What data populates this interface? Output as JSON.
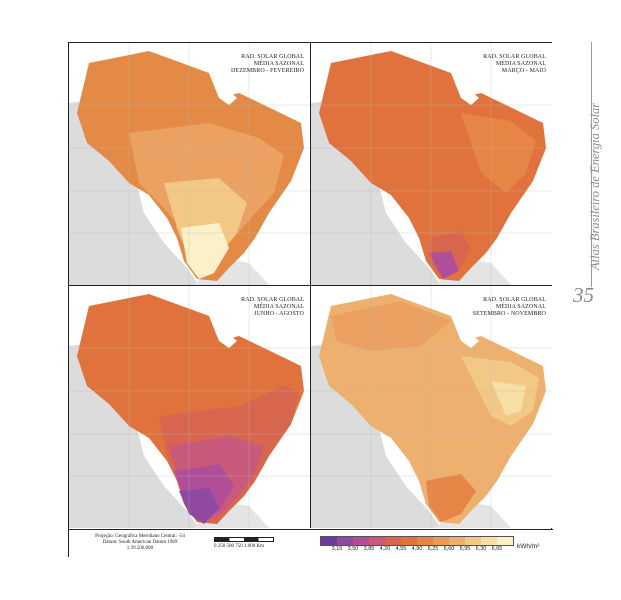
{
  "panels": [
    {
      "id": "summer",
      "line1": "RAD. SOLAR GLOBAL",
      "line2": "MÉDIA SAZONAL",
      "line3": "DEZEMBRO - FEVEREIRO"
    },
    {
      "id": "autumn",
      "line1": "RAD. SOLAR GLOBAL",
      "line2": "MÉDIA SAZONAL",
      "line3": "MARÇO - MAIO"
    },
    {
      "id": "winter",
      "line1": "RAD. SOLAR GLOBAL",
      "line2": "MÉDIA SAZONAL",
      "line3": "JUNHO - AGOSTO"
    },
    {
      "id": "spring",
      "line1": "RAD. SOLAR GLOBAL",
      "line2": "MÉDIA SAZONAL",
      "line3": "SETEMBRO - NOVEMBRO"
    }
  ],
  "footer": {
    "projection_line1": "Projeção: Geográfica    Meridiano Central: -54",
    "projection_line2": "Datum: South American Datum 1969",
    "projection_line3": "1:39.500.000",
    "scale_labels": "0    250   500   750   1.000  Km"
  },
  "legend": {
    "values": [
      "3,15",
      "3,50",
      "3,85",
      "4,20",
      "4,55",
      "4,90",
      "5,25",
      "5,60",
      "5,95",
      "6,30",
      "6,65"
    ],
    "unit": "kWh/m²",
    "colors": [
      "#6a3d9a",
      "#8e4aa0",
      "#b04e99",
      "#c95a7c",
      "#d8664f",
      "#e0733d",
      "#e68545",
      "#eb9a58",
      "#eeb06e",
      "#f2c887",
      "#f6dea4",
      "#fbf0c8"
    ]
  },
  "sidebar": {
    "book_title": "Atlas Brasileiro de Energia Solar",
    "page_number": "35"
  }
}
